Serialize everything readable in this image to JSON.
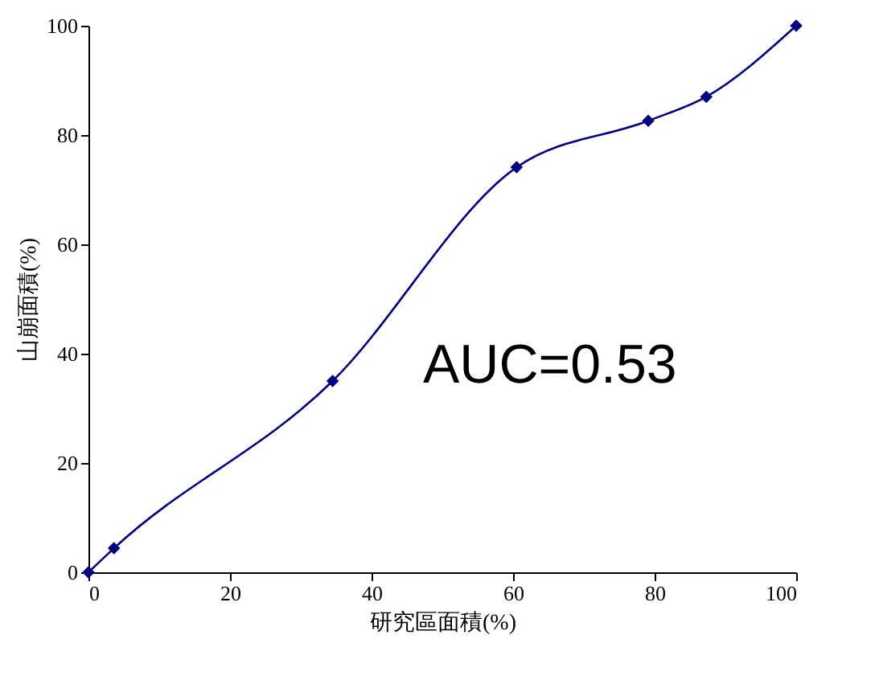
{
  "chart_data": {
    "type": "line",
    "xlabel": "研究區面積(%)",
    "ylabel": "山崩面積(%)",
    "x": [
      0,
      3.6,
      34.5,
      60.5,
      79.1,
      87.3,
      100
    ],
    "series": [
      {
        "color": "#000080",
        "values": [
          0,
          4.4,
          35,
          74.1,
          82.6,
          87,
          100
        ]
      }
    ],
    "marker": "diamond",
    "line_style": "solid",
    "xlim": [
      0,
      100
    ],
    "xticks": [
      0,
      20,
      40,
      60,
      80,
      100
    ],
    "ylim": [
      0,
      100
    ],
    "yticks": [
      0,
      20,
      40,
      60,
      80,
      100
    ],
    "grid": false,
    "legend": false,
    "annotations": [
      "AUC=0.53"
    ]
  }
}
